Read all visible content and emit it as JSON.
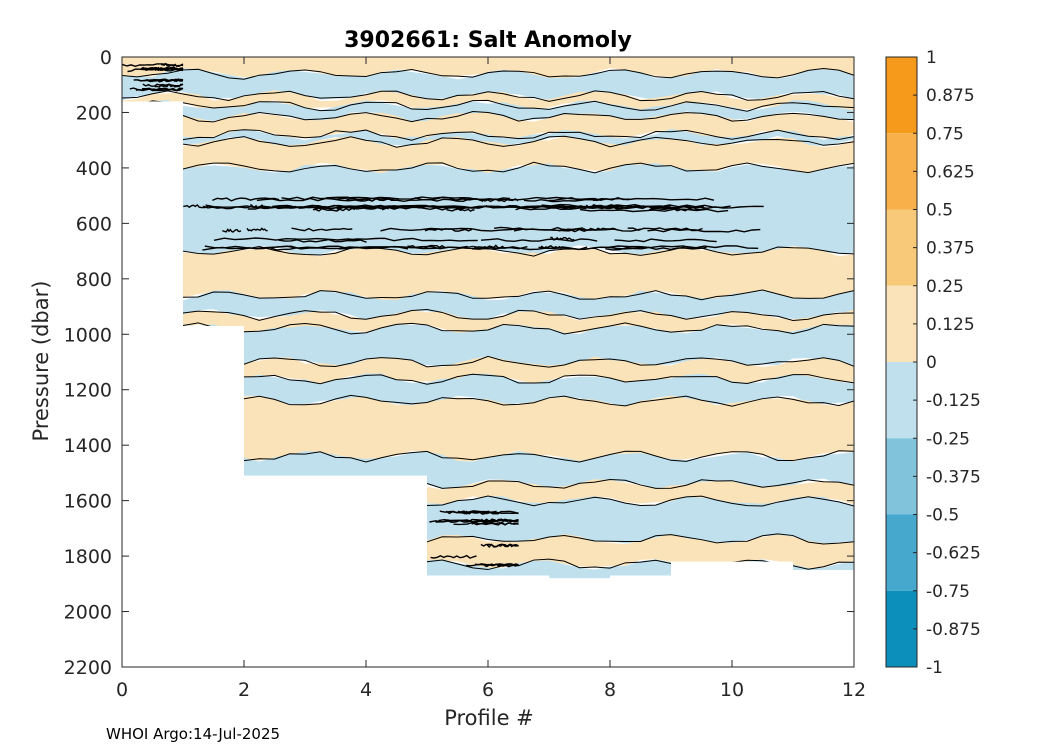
{
  "chart_data": {
    "type": "heatmap",
    "title": "3902661: Salt Anomoly",
    "xlabel": "Profile #",
    "ylabel": "Pressure (dbar)",
    "xlim": [
      0,
      12
    ],
    "ylim": [
      0,
      2200
    ],
    "y_reversed": true,
    "x_ticks": [
      0,
      2,
      4,
      6,
      8,
      10,
      12
    ],
    "y_ticks": [
      0,
      200,
      400,
      600,
      800,
      1000,
      1200,
      1400,
      1600,
      1800,
      2000,
      2200
    ],
    "colorbar": {
      "range": [
        -1,
        1
      ],
      "ticks": [
        "1",
        "0.875",
        "0.75",
        "0.625",
        "0.5",
        "0.375",
        "0.25",
        "0.125",
        "0",
        "-0.125",
        "-0.25",
        "-0.375",
        "-0.5",
        "-0.625",
        "-0.75",
        "-0.875",
        "-1"
      ],
      "bands": [
        {
          "min": 0.75,
          "max": 1.0,
          "color": "#f59a1a"
        },
        {
          "min": 0.5,
          "max": 0.75,
          "color": "#f8b04a"
        },
        {
          "min": 0.25,
          "max": 0.5,
          "color": "#f9c97a"
        },
        {
          "min": 0.0,
          "max": 0.25,
          "color": "#fbe3b9"
        },
        {
          "min": -0.25,
          "max": 0.0,
          "color": "#bfe0ec"
        },
        {
          "min": -0.5,
          "max": -0.25,
          "color": "#82c3dc"
        },
        {
          "min": -0.75,
          "max": -0.5,
          "color": "#45a8cc"
        },
        {
          "min": -1.0,
          "max": -0.75,
          "color": "#0c8fba"
        }
      ]
    },
    "profile_depth_coverage": [
      {
        "x_from": 0,
        "x_to": 1,
        "max_pressure": 160
      },
      {
        "x_from": 1,
        "x_to": 2,
        "max_pressure": 970
      },
      {
        "x_from": 2,
        "x_to": 5,
        "max_pressure": 1510
      },
      {
        "x_from": 5,
        "x_to": 7,
        "max_pressure": 1870
      },
      {
        "x_from": 7,
        "x_to": 8,
        "max_pressure": 1880
      },
      {
        "x_from": 8,
        "x_to": 9,
        "max_pressure": 1870
      },
      {
        "x_from": 9,
        "x_to": 11,
        "max_pressure": 1820
      },
      {
        "x_from": 11,
        "x_to": 12,
        "max_pressure": 1850
      }
    ],
    "anomaly_layers": [
      {
        "p_top": 0,
        "p_bot": 60,
        "value": 0.1
      },
      {
        "p_top": 60,
        "p_bot": 140,
        "value": -0.1
      },
      {
        "p_top": 140,
        "p_bot": 175,
        "value": 0.1
      },
      {
        "p_top": 175,
        "p_bot": 215,
        "value": -0.1
      },
      {
        "p_top": 215,
        "p_bot": 280,
        "value": 0.1
      },
      {
        "p_top": 280,
        "p_bot": 305,
        "value": -0.1
      },
      {
        "p_top": 305,
        "p_bot": 400,
        "value": 0.1
      },
      {
        "p_top": 400,
        "p_bot": 700,
        "value": -0.1
      },
      {
        "p_top": 700,
        "p_bot": 860,
        "value": 0.1
      },
      {
        "p_top": 860,
        "p_bot": 930,
        "value": -0.1
      },
      {
        "p_top": 930,
        "p_bot": 980,
        "value": 0.1
      },
      {
        "p_top": 980,
        "p_bot": 1100,
        "value": -0.1
      },
      {
        "p_top": 1100,
        "p_bot": 1160,
        "value": 0.1
      },
      {
        "p_top": 1160,
        "p_bot": 1240,
        "value": -0.1
      },
      {
        "p_top": 1240,
        "p_bot": 1440,
        "value": 0.1
      },
      {
        "p_top": 1440,
        "p_bot": 1540,
        "value": -0.1
      },
      {
        "p_top": 1540,
        "p_bot": 1600,
        "value": 0.1
      },
      {
        "p_top": 1600,
        "p_bot": 1740,
        "value": -0.1
      },
      {
        "p_top": 1740,
        "p_bot": 1830,
        "value": 0.1
      },
      {
        "p_top": 1830,
        "p_bot": 1890,
        "value": -0.1
      }
    ],
    "contour_clusters": [
      {
        "x_from": 1.0,
        "x_to": 12.0,
        "p_from": 500,
        "p_to": 720
      },
      {
        "x_from": 0.0,
        "x_to": 1.0,
        "p_from": 20,
        "p_to": 130
      },
      {
        "x_from": 5.0,
        "x_to": 6.5,
        "p_from": 1620,
        "p_to": 1860
      }
    ]
  },
  "footer": {
    "text": "WHOI Argo:14-Jul-2025"
  }
}
